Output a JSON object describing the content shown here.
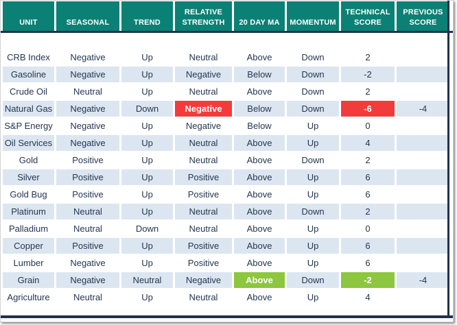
{
  "colors": {
    "header_bg": "#0a8174",
    "divider_navy": "#223049",
    "row_alt_blue": "#dce6f1",
    "body_text": "#24364f",
    "highlight_red": "#f43b3c",
    "highlight_green": "#8dc63f"
  },
  "table": {
    "columns": [
      {
        "key": "unit",
        "label": "UNIT"
      },
      {
        "key": "seasonal",
        "label": "SEASONAL"
      },
      {
        "key": "trend",
        "label": "TREND"
      },
      {
        "key": "relative-strength",
        "label": "RELATIVE STRENGTH"
      },
      {
        "key": "20-day-ma",
        "label": "20 DAY MA"
      },
      {
        "key": "momentum",
        "label": "MOMENTUM"
      },
      {
        "key": "technical-score",
        "label": "TECHNICAL SCORE"
      },
      {
        "key": "previous-score",
        "label": "PREVIOUS SCORE"
      }
    ],
    "rows": [
      {
        "cells": [
          "CRB Index",
          "Negative",
          "Up",
          "Neutral",
          "Above",
          "Down",
          "2",
          ""
        ]
      },
      {
        "cells": [
          "Gasoline",
          "Negative",
          "Up",
          "Negative",
          "Below",
          "Down",
          "-2",
          ""
        ]
      },
      {
        "cells": [
          "Crude Oil",
          "Neutral",
          "Up",
          "Neutral",
          "Above",
          "Down",
          "2",
          ""
        ]
      },
      {
        "cells": [
          "Natural Gas",
          "Negative",
          "Down",
          "Negative",
          "Below",
          "Down",
          "-6",
          "-4"
        ],
        "highlights": {
          "3": "red",
          "6": "red"
        }
      },
      {
        "cells": [
          "S&P Energy",
          "Negative",
          "Up",
          "Negative",
          "Below",
          "Up",
          "0",
          ""
        ]
      },
      {
        "cells": [
          "Oil Services",
          "Negative",
          "Up",
          "Neutral",
          "Above",
          "Up",
          "4",
          ""
        ]
      },
      {
        "cells": [
          "Gold",
          "Positive",
          "Up",
          "Neutral",
          "Above",
          "Down",
          "2",
          ""
        ]
      },
      {
        "cells": [
          "Silver",
          "Positive",
          "Up",
          "Positive",
          "Above",
          "Up",
          "6",
          ""
        ]
      },
      {
        "cells": [
          "Gold Bug",
          "Positive",
          "Up",
          "Positive",
          "Above",
          "Up",
          "6",
          ""
        ]
      },
      {
        "cells": [
          "Platinum",
          "Neutral",
          "Up",
          "Neutral",
          "Above",
          "Down",
          "2",
          ""
        ]
      },
      {
        "cells": [
          "Palladium",
          "Neutral",
          "Down",
          "Neutral",
          "Above",
          "Up",
          "0",
          ""
        ]
      },
      {
        "cells": [
          "Copper",
          "Positive",
          "Up",
          "Positive",
          "Above",
          "Up",
          "6",
          ""
        ]
      },
      {
        "cells": [
          "Lumber",
          "Negative",
          "Up",
          "Positive",
          "Above",
          "Up",
          "6",
          ""
        ]
      },
      {
        "cells": [
          "Grain",
          "Negative",
          "Neutral",
          "Negative",
          "Above",
          "Down",
          "-2",
          "-4"
        ],
        "highlights": {
          "4": "green",
          "6": "green"
        }
      },
      {
        "cells": [
          "Agriculture",
          "Neutral",
          "Up",
          "Neutral",
          "Above",
          "Up",
          "4",
          ""
        ]
      }
    ]
  },
  "chart_data": {
    "type": "table",
    "title": "Commodity technical score table",
    "columns": [
      "UNIT",
      "SEASONAL",
      "TREND",
      "RELATIVE STRENGTH",
      "20 DAY MA",
      "MOMENTUM",
      "TECHNICAL SCORE",
      "PREVIOUS SCORE"
    ],
    "rows": [
      [
        "CRB Index",
        "Negative",
        "Up",
        "Neutral",
        "Above",
        "Down",
        2,
        null
      ],
      [
        "Gasoline",
        "Negative",
        "Up",
        "Negative",
        "Below",
        "Down",
        -2,
        null
      ],
      [
        "Crude Oil",
        "Neutral",
        "Up",
        "Neutral",
        "Above",
        "Down",
        2,
        null
      ],
      [
        "Natural Gas",
        "Negative",
        "Down",
        "Negative",
        "Below",
        "Down",
        -6,
        -4
      ],
      [
        "S&P Energy",
        "Negative",
        "Up",
        "Negative",
        "Below",
        "Up",
        0,
        null
      ],
      [
        "Oil Services",
        "Negative",
        "Up",
        "Neutral",
        "Above",
        "Up",
        4,
        null
      ],
      [
        "Gold",
        "Positive",
        "Up",
        "Neutral",
        "Above",
        "Down",
        2,
        null
      ],
      [
        "Silver",
        "Positive",
        "Up",
        "Positive",
        "Above",
        "Up",
        6,
        null
      ],
      [
        "Gold Bug",
        "Positive",
        "Up",
        "Positive",
        "Above",
        "Up",
        6,
        null
      ],
      [
        "Platinum",
        "Neutral",
        "Up",
        "Neutral",
        "Above",
        "Down",
        2,
        null
      ],
      [
        "Palladium",
        "Neutral",
        "Down",
        "Neutral",
        "Above",
        "Up",
        0,
        null
      ],
      [
        "Copper",
        "Positive",
        "Up",
        "Positive",
        "Above",
        "Up",
        6,
        null
      ],
      [
        "Lumber",
        "Negative",
        "Up",
        "Positive",
        "Above",
        "Up",
        6,
        null
      ],
      [
        "Grain",
        "Negative",
        "Neutral",
        "Negative",
        "Above",
        "Down",
        -2,
        -4
      ],
      [
        "Agriculture",
        "Neutral",
        "Up",
        "Neutral",
        "Above",
        "Up",
        4,
        null
      ]
    ],
    "highlighted_cells": [
      {
        "row": "Natural Gas",
        "column": "RELATIVE STRENGTH",
        "color": "red"
      },
      {
        "row": "Natural Gas",
        "column": "TECHNICAL SCORE",
        "color": "red"
      },
      {
        "row": "Grain",
        "column": "20 DAY MA",
        "color": "green"
      },
      {
        "row": "Grain",
        "column": "TECHNICAL SCORE",
        "color": "green"
      }
    ],
    "layout": {
      "zebra_striping": true,
      "header_color": "#0a8174",
      "grid": "white gutters between cells"
    }
  }
}
